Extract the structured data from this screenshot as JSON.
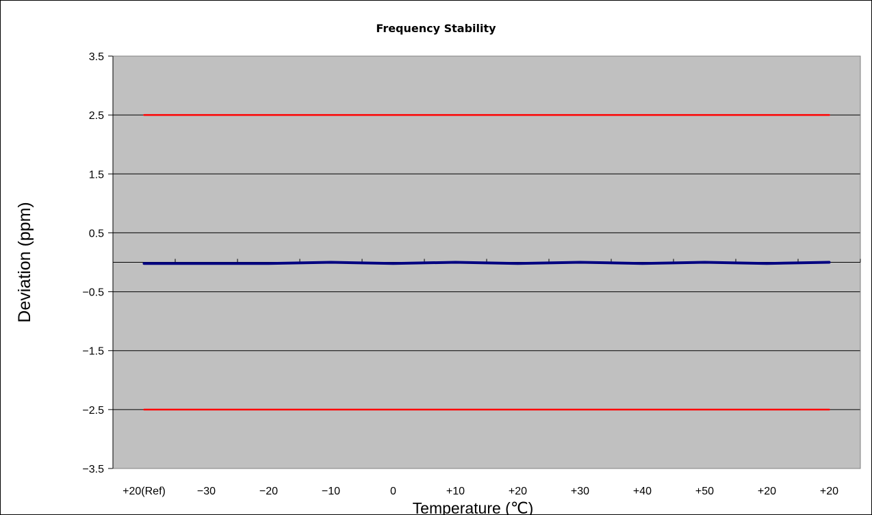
{
  "chart_data": {
    "type": "line",
    "title": "Frequency Stability",
    "xlabel": "Temperature (℃)",
    "ylabel": "Deviation (ppm)",
    "categories": [
      "+20(Ref)",
      "−30",
      "−20",
      "−10",
      "0",
      "+10",
      "+20",
      "+30",
      "+40",
      "+50",
      "+20",
      "+20"
    ],
    "ylim": [
      -3.5,
      3.5
    ],
    "yticks": [
      {
        "value": 3.5,
        "label": "3.5"
      },
      {
        "value": 2.5,
        "label": "2.5"
      },
      {
        "value": 1.5,
        "label": "1.5"
      },
      {
        "value": 0.5,
        "label": "0.5"
      },
      {
        "value": -0.5,
        "label": "−0.5"
      },
      {
        "value": -1.5,
        "label": "−1.5"
      },
      {
        "value": -2.5,
        "label": "−2.5"
      },
      {
        "value": -3.5,
        "label": "−3.5"
      }
    ],
    "grid": true,
    "plot_background": "#c0c0c0",
    "series": [
      {
        "values": [
          -0.02,
          -0.02,
          -0.02,
          0.0,
          -0.02,
          0.0,
          -0.02,
          0.0,
          -0.02,
          0.0,
          -0.02,
          0.0
        ],
        "color": "#000080"
      },
      {
        "values": [
          2.5,
          2.5,
          2.5,
          2.5,
          2.5,
          2.5,
          2.5,
          2.5,
          2.5,
          2.5,
          2.5,
          2.5
        ],
        "color": "#ff0000"
      },
      {
        "values": [
          -2.5,
          -2.5,
          -2.5,
          -2.5,
          -2.5,
          -2.5,
          -2.5,
          -2.5,
          -2.5,
          -2.5,
          -2.5,
          -2.5
        ],
        "color": "#ff0000"
      }
    ]
  }
}
